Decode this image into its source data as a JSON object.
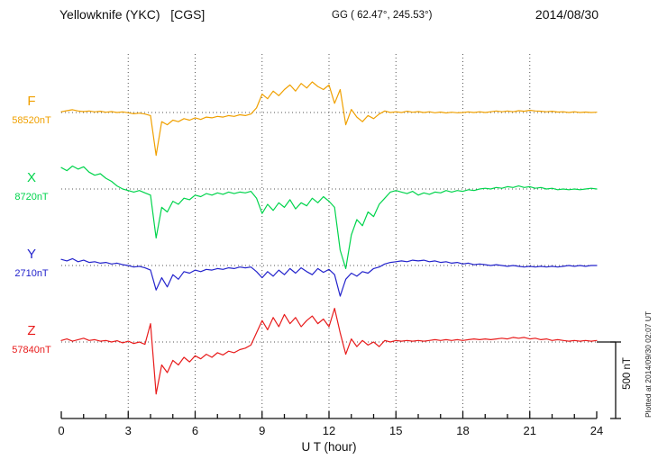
{
  "header": {
    "title": "Yellowknife (YKC)   [CGS]",
    "coordinates": "GG ( 62.47°, 245.53°)",
    "date": "2014/08/30"
  },
  "footer": {
    "plotted_note": "Plotted at 2014/09/30 02:07 UT"
  },
  "scale_bar": {
    "label": "500 nT",
    "span_nT": 500
  },
  "chart_data": {
    "type": "line",
    "xlabel": "U T (hour)",
    "x_range": [
      0,
      24
    ],
    "x_step_hours": 0.25,
    "x_ticks": [
      0,
      3,
      6,
      9,
      12,
      15,
      18,
      21,
      24
    ],
    "grid": "dotted",
    "scale_bar_nT": 500,
    "series": [
      {
        "name": "F",
        "baseline_label": "58520nT",
        "color": "#f0a000",
        "offsets_nT": [
          5,
          12,
          18,
          10,
          6,
          10,
          4,
          8,
          2,
          6,
          0,
          4,
          -2,
          -8,
          -4,
          -10,
          -20,
          -280,
          -60,
          -80,
          -50,
          -60,
          -40,
          -50,
          -35,
          -45,
          -30,
          -35,
          -25,
          -30,
          -20,
          -25,
          -15,
          -20,
          -10,
          30,
          120,
          90,
          140,
          110,
          150,
          180,
          140,
          190,
          160,
          200,
          170,
          150,
          180,
          60,
          150,
          -80,
          20,
          -30,
          -60,
          -20,
          -40,
          -10,
          10,
          0,
          5,
          0,
          8,
          2,
          6,
          0,
          5,
          -2,
          3,
          -3,
          2,
          -2,
          0,
          4,
          0,
          5,
          0,
          5,
          10,
          5,
          10,
          5,
          12,
          8,
          15,
          10,
          8,
          5,
          8,
          3,
          5,
          0,
          5,
          0,
          3,
          0,
          2
        ]
      },
      {
        "name": "X",
        "baseline_label": "8720nT",
        "color": "#00d44c",
        "offsets_nT": [
          140,
          120,
          150,
          130,
          145,
          110,
          90,
          100,
          70,
          50,
          20,
          0,
          -10,
          -20,
          -10,
          -25,
          -40,
          -320,
          -120,
          -150,
          -80,
          -100,
          -60,
          -70,
          -40,
          -50,
          -30,
          -40,
          -25,
          -35,
          -20,
          -30,
          -20,
          -25,
          -15,
          -60,
          -160,
          -100,
          -140,
          -90,
          -120,
          -70,
          -130,
          -90,
          -110,
          -60,
          -90,
          -50,
          -80,
          -120,
          -400,
          -520,
          -300,
          -200,
          -240,
          -150,
          -180,
          -100,
          -60,
          -20,
          -10,
          -20,
          -30,
          -15,
          -40,
          -25,
          -35,
          -20,
          -25,
          -10,
          -20,
          -10,
          -15,
          -5,
          -10,
          0,
          5,
          0,
          10,
          5,
          15,
          10,
          20,
          10,
          15,
          5,
          10,
          0,
          5,
          -5,
          0,
          -5,
          0,
          -5,
          0,
          5,
          0
        ]
      },
      {
        "name": "Y",
        "baseline_label": "2710nT",
        "color": "#2323cc",
        "offsets_nT": [
          40,
          30,
          45,
          25,
          35,
          20,
          25,
          15,
          20,
          10,
          15,
          5,
          0,
          -10,
          -5,
          -15,
          -30,
          -160,
          -80,
          -140,
          -60,
          -90,
          -40,
          -50,
          -30,
          -40,
          -25,
          -30,
          -20,
          -25,
          -15,
          -20,
          -10,
          -15,
          -10,
          -40,
          -80,
          -40,
          -70,
          -30,
          -60,
          -20,
          -50,
          -15,
          -40,
          -60,
          -20,
          -45,
          -25,
          -60,
          -200,
          -90,
          -50,
          -70,
          -40,
          -50,
          -20,
          -10,
          10,
          20,
          25,
          30,
          25,
          35,
          30,
          35,
          25,
          30,
          20,
          25,
          15,
          20,
          10,
          15,
          5,
          10,
          5,
          0,
          5,
          0,
          -5,
          0,
          -5,
          -10,
          -5,
          -10,
          -5,
          -10,
          -5,
          -10,
          -5,
          0,
          -5,
          0,
          -5,
          0,
          0
        ]
      },
      {
        "name": "Z",
        "baseline_label": "57840nT",
        "color": "#e81b1b",
        "offsets_nT": [
          10,
          20,
          5,
          15,
          25,
          10,
          15,
          5,
          10,
          0,
          8,
          -5,
          5,
          -10,
          0,
          -15,
          120,
          -340,
          -150,
          -200,
          -120,
          -150,
          -100,
          -130,
          -90,
          -110,
          -80,
          -100,
          -70,
          -85,
          -60,
          -70,
          -50,
          -40,
          -20,
          60,
          140,
          80,
          160,
          100,
          180,
          120,
          160,
          100,
          140,
          170,
          120,
          150,
          100,
          220,
          60,
          -80,
          20,
          -30,
          10,
          -20,
          0,
          -30,
          10,
          0,
          10,
          5,
          10,
          5,
          10,
          5,
          10,
          15,
          10,
          15,
          10,
          15,
          10,
          15,
          20,
          15,
          20,
          15,
          20,
          25,
          20,
          30,
          25,
          30,
          20,
          25,
          15,
          20,
          10,
          15,
          10,
          5,
          10,
          5,
          10,
          5,
          10
        ]
      }
    ]
  }
}
